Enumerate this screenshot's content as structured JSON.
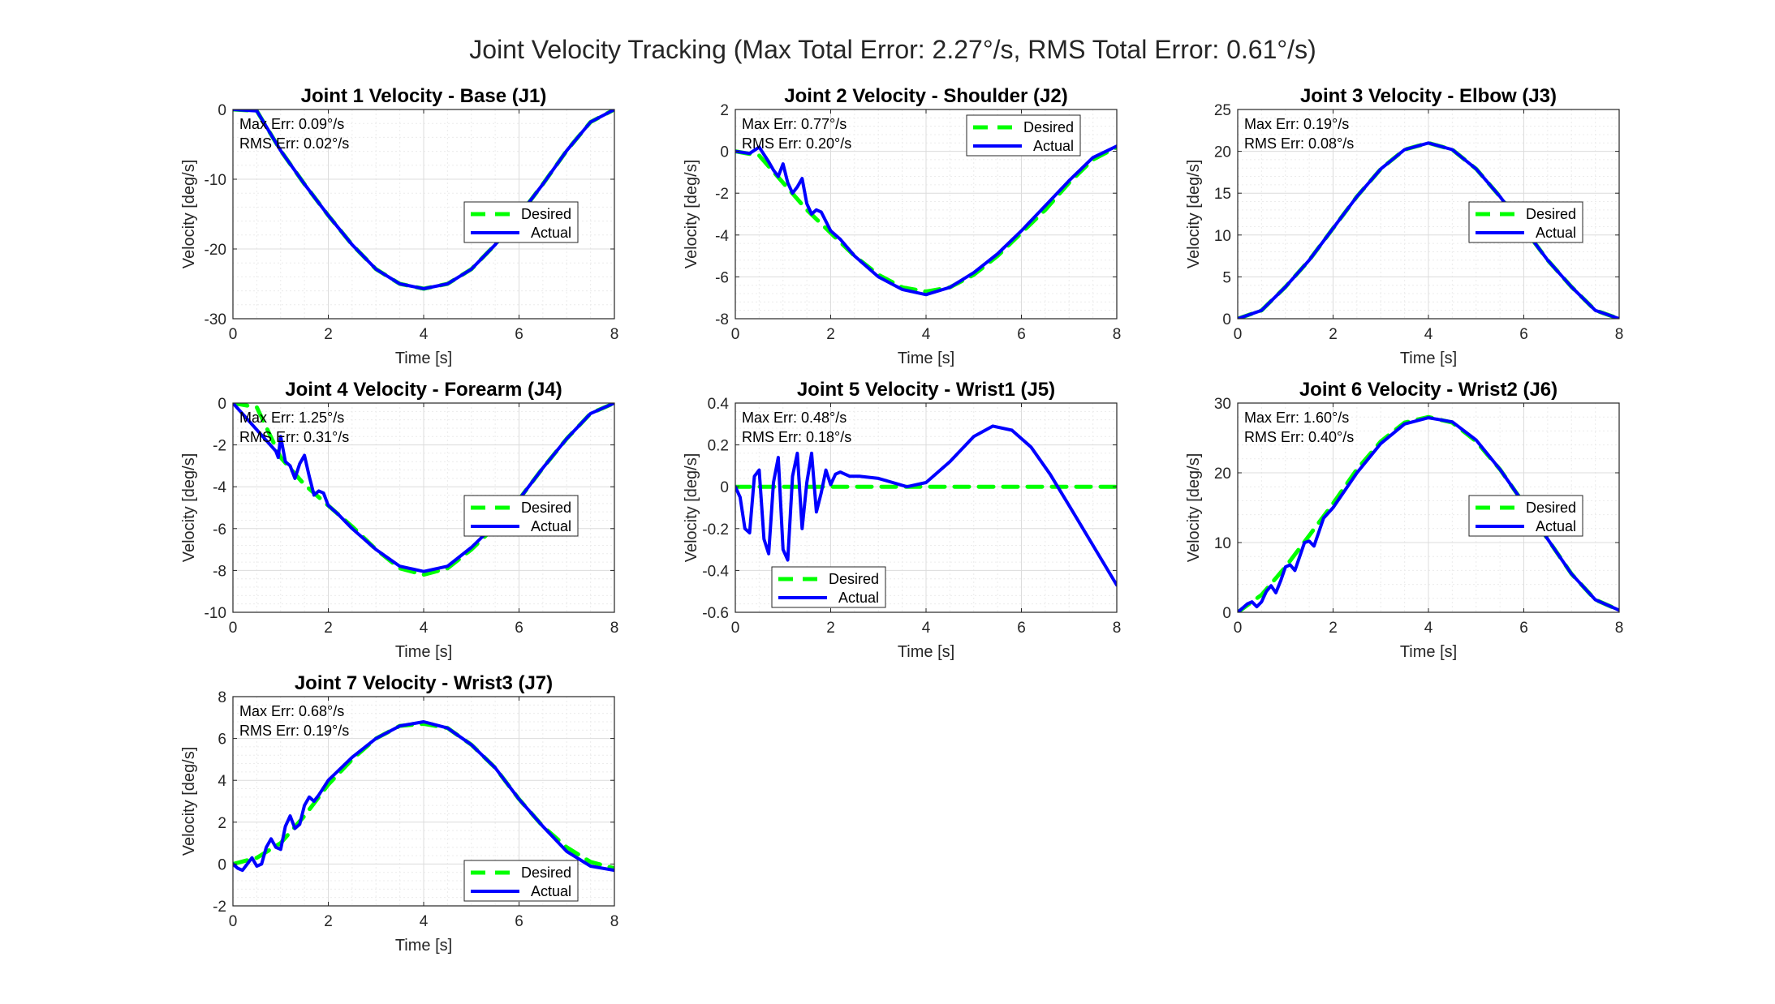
{
  "figure": {
    "suptitle": "Joint Velocity Tracking (Max Total Error: 2.27°/s, RMS Total Error: 0.61°/s)"
  },
  "colors": {
    "desired": "#00ff00",
    "actual": "#0000ff"
  },
  "chart_data": [
    {
      "type": "line",
      "title": "Joint 1 Velocity - Base (J1)",
      "xlabel": "Time [s]",
      "ylabel": "Velocity [deg/s]",
      "xlim": [
        0,
        8
      ],
      "ylim": [
        -30,
        0
      ],
      "xticks": [
        0,
        2,
        4,
        6,
        8
      ],
      "yticks": [
        -30,
        -20,
        -10,
        0
      ],
      "grid": true,
      "legend_placement": "center-right",
      "annotations": [
        "Max Err: 0.09°/s",
        "RMS Err: 0.02°/s"
      ],
      "series": [
        {
          "name": "Desired",
          "x": [
            0,
            0.5,
            1,
            1.5,
            2,
            2.5,
            3,
            3.5,
            4,
            4.5,
            5,
            5.5,
            6,
            6.5,
            7,
            7.5,
            8
          ],
          "y": [
            0,
            -0.2,
            -5.9,
            -10.7,
            -15.2,
            -19.4,
            -22.9,
            -25.0,
            -25.7,
            -25.0,
            -22.9,
            -19.4,
            -15.2,
            -10.7,
            -5.9,
            -1.8,
            0
          ]
        },
        {
          "name": "Actual",
          "x": [
            0,
            0.5,
            1,
            1.5,
            2,
            2.5,
            3,
            3.5,
            4,
            4.5,
            5,
            5.5,
            6,
            6.5,
            7,
            7.5,
            8
          ],
          "y": [
            0,
            -0.2,
            -5.9,
            -10.7,
            -15.2,
            -19.4,
            -22.9,
            -25.0,
            -25.7,
            -25.0,
            -22.9,
            -19.4,
            -15.2,
            -10.7,
            -5.9,
            -1.8,
            0
          ]
        }
      ]
    },
    {
      "type": "line",
      "title": "Joint 2 Velocity - Shoulder (J2)",
      "xlabel": "Time [s]",
      "ylabel": "Velocity [deg/s]",
      "xlim": [
        0,
        8
      ],
      "ylim": [
        -8,
        2
      ],
      "xticks": [
        0,
        2,
        4,
        6,
        8
      ],
      "yticks": [
        -8,
        -6,
        -4,
        -2,
        0,
        2
      ],
      "grid": true,
      "legend_placement": "top-right",
      "annotations": [
        "Max Err: 0.77°/s",
        "RMS Err: 0.20°/s"
      ],
      "series": [
        {
          "name": "Desired",
          "x": [
            0,
            0.5,
            1,
            1.5,
            2,
            2.5,
            3,
            3.5,
            4,
            4.5,
            5,
            5.5,
            6,
            6.5,
            7,
            7.5,
            8
          ],
          "y": [
            0,
            -0.2,
            -1.5,
            -2.8,
            -3.9,
            -5.0,
            -5.9,
            -6.5,
            -6.7,
            -6.5,
            -5.9,
            -5.0,
            -3.9,
            -2.8,
            -1.5,
            -0.4,
            0.2
          ]
        },
        {
          "name": "Actual",
          "x": [
            0,
            0.3,
            0.5,
            0.7,
            0.8,
            0.9,
            1.0,
            1.1,
            1.2,
            1.3,
            1.4,
            1.5,
            1.6,
            1.7,
            1.8,
            2.0,
            2.2,
            2.5,
            3,
            3.5,
            4,
            4.5,
            5,
            5.5,
            6,
            6.5,
            7,
            7.5,
            8
          ],
          "y": [
            0,
            -0.1,
            0.2,
            -0.5,
            -0.9,
            -1.2,
            -0.6,
            -1.5,
            -2.0,
            -1.7,
            -1.3,
            -2.5,
            -3.0,
            -2.8,
            -2.9,
            -3.8,
            -4.2,
            -5.0,
            -6.0,
            -6.6,
            -6.85,
            -6.5,
            -5.8,
            -4.9,
            -3.8,
            -2.6,
            -1.4,
            -0.3,
            0.25
          ]
        }
      ]
    },
    {
      "type": "line",
      "title": "Joint 3 Velocity - Elbow (J3)",
      "xlabel": "Time [s]",
      "ylabel": "Velocity [deg/s]",
      "xlim": [
        0,
        8
      ],
      "ylim": [
        0,
        25
      ],
      "xticks": [
        0,
        2,
        4,
        6,
        8
      ],
      "yticks": [
        0,
        5,
        10,
        15,
        20,
        25
      ],
      "grid": true,
      "legend_placement": "center-right",
      "annotations": [
        "Max Err: 0.19°/s",
        "RMS Err: 0.08°/s"
      ],
      "series": [
        {
          "name": "Desired",
          "x": [
            0,
            0.5,
            1,
            1.5,
            2,
            2.5,
            3,
            3.5,
            4,
            4.5,
            5,
            5.5,
            6,
            6.5,
            7,
            7.5,
            8
          ],
          "y": [
            0,
            1.0,
            3.8,
            7.0,
            10.8,
            14.6,
            17.9,
            20.2,
            21.0,
            20.2,
            17.9,
            14.6,
            10.8,
            7.0,
            3.8,
            1.0,
            0
          ]
        },
        {
          "name": "Actual",
          "x": [
            0,
            0.5,
            1,
            1.5,
            2,
            2.5,
            3,
            3.5,
            4,
            4.5,
            5,
            5.5,
            6,
            6.5,
            7,
            7.5,
            8
          ],
          "y": [
            0,
            1.0,
            3.8,
            7.0,
            10.8,
            14.6,
            17.9,
            20.2,
            21.0,
            20.2,
            17.9,
            14.6,
            10.8,
            7.0,
            3.8,
            1.0,
            0
          ]
        }
      ]
    },
    {
      "type": "line",
      "title": "Joint 4 Velocity - Forearm (J4)",
      "xlabel": "Time [s]",
      "ylabel": "Velocity [deg/s]",
      "xlim": [
        0,
        8
      ],
      "ylim": [
        -10,
        0
      ],
      "xticks": [
        0,
        2,
        4,
        6,
        8
      ],
      "yticks": [
        -10,
        -8,
        -6,
        -4,
        -2,
        0
      ],
      "grid": true,
      "legend_placement": "center-right",
      "annotations": [
        "Max Err: 1.25°/s",
        "RMS Err: 0.31°/s"
      ],
      "series": [
        {
          "name": "Desired",
          "x": [
            0,
            0.5,
            1,
            1.5,
            2,
            2.5,
            3,
            3.5,
            4,
            4.5,
            5,
            5.5,
            6,
            6.5,
            7,
            7.5,
            8
          ],
          "y": [
            0,
            -0.2,
            -2.6,
            -3.9,
            -4.9,
            -5.9,
            -7.0,
            -7.9,
            -8.2,
            -7.9,
            -7.0,
            -5.9,
            -4.6,
            -3.1,
            -1.7,
            -0.5,
            0
          ]
        },
        {
          "name": "Actual",
          "x": [
            0,
            0.9,
            0.95,
            1.0,
            1.1,
            1.2,
            1.3,
            1.4,
            1.5,
            1.6,
            1.7,
            1.8,
            1.9,
            2.0,
            2.2,
            2.5,
            3,
            3.5,
            4,
            4.5,
            5,
            5.5,
            6,
            6.5,
            7,
            7.5,
            8
          ],
          "y": [
            0,
            -2.3,
            -2.6,
            -1.6,
            -2.8,
            -3.0,
            -3.6,
            -2.9,
            -2.5,
            -3.5,
            -4.4,
            -4.2,
            -4.3,
            -4.9,
            -5.3,
            -6.0,
            -7.0,
            -7.8,
            -8.05,
            -7.8,
            -6.9,
            -5.8,
            -4.6,
            -3.1,
            -1.7,
            -0.5,
            0
          ]
        }
      ]
    },
    {
      "type": "line",
      "title": "Joint 5 Velocity - Wrist1 (J5)",
      "xlabel": "Time [s]",
      "ylabel": "Velocity [deg/s]",
      "xlim": [
        0,
        8
      ],
      "ylim": [
        -0.6,
        0.4
      ],
      "xticks": [
        0,
        2,
        4,
        6,
        8
      ],
      "yticks": [
        -0.6,
        -0.4,
        -0.2,
        0,
        0.2,
        0.4
      ],
      "grid": true,
      "legend_placement": "bottom-left",
      "annotations": [
        "Max Err: 0.48°/s",
        "RMS Err: 0.18°/s"
      ],
      "series": [
        {
          "name": "Desired",
          "x": [
            0,
            8
          ],
          "y": [
            0,
            0
          ]
        },
        {
          "name": "Actual",
          "x": [
            0,
            0.1,
            0.2,
            0.3,
            0.4,
            0.5,
            0.6,
            0.7,
            0.8,
            0.9,
            1.0,
            1.1,
            1.2,
            1.3,
            1.4,
            1.5,
            1.6,
            1.7,
            1.8,
            1.9,
            2.0,
            2.1,
            2.2,
            2.4,
            2.6,
            3.0,
            3.3,
            3.6,
            4.0,
            4.5,
            5.0,
            5.4,
            5.8,
            6.2,
            6.6,
            7.0,
            7.5,
            8.0
          ],
          "y": [
            0,
            -0.05,
            -0.2,
            -0.22,
            0.05,
            0.08,
            -0.25,
            -0.32,
            0.02,
            0.14,
            -0.3,
            -0.35,
            0.05,
            0.16,
            -0.2,
            0.02,
            0.16,
            -0.12,
            -0.03,
            0.08,
            0.01,
            0.06,
            0.07,
            0.05,
            0.05,
            0.04,
            0.02,
            0.0,
            0.02,
            0.12,
            0.24,
            0.29,
            0.27,
            0.19,
            0.06,
            -0.09,
            -0.28,
            -0.47
          ]
        }
      ]
    },
    {
      "type": "line",
      "title": "Joint 6 Velocity - Wrist2 (J6)",
      "xlabel": "Time [s]",
      "ylabel": "Velocity [deg/s]",
      "xlim": [
        0,
        8
      ],
      "ylim": [
        0,
        30
      ],
      "xticks": [
        0,
        2,
        4,
        6,
        8
      ],
      "yticks": [
        0,
        10,
        20,
        30
      ],
      "grid": true,
      "legend_placement": "center-right",
      "annotations": [
        "Max Err: 1.60°/s",
        "RMS Err: 0.40°/s"
      ],
      "series": [
        {
          "name": "Desired",
          "x": [
            0,
            0.5,
            1,
            1.5,
            2,
            2.5,
            3,
            3.5,
            4,
            4.5,
            5,
            5.5,
            6,
            6.5,
            7,
            7.5,
            8
          ],
          "y": [
            0,
            2.5,
            6.5,
            11,
            15.6,
            20.5,
            24.5,
            27.2,
            28.0,
            27.2,
            24.5,
            20.5,
            15.6,
            10.5,
            5.5,
            1.8,
            0.3
          ]
        },
        {
          "name": "Actual",
          "x": [
            0,
            0.2,
            0.3,
            0.4,
            0.5,
            0.6,
            0.7,
            0.8,
            0.9,
            1.0,
            1.1,
            1.2,
            1.3,
            1.4,
            1.5,
            1.6,
            1.7,
            1.8,
            2.0,
            2.5,
            3,
            3.5,
            4,
            4.5,
            5,
            5.5,
            6,
            6.5,
            7,
            7.5,
            8
          ],
          "y": [
            0,
            1.2,
            1.5,
            0.8,
            1.5,
            3.0,
            3.8,
            2.8,
            4.5,
            6.5,
            6.8,
            6.0,
            8.0,
            10.0,
            10.2,
            9.5,
            11.5,
            13.5,
            15.0,
            20.0,
            24.2,
            27.0,
            27.9,
            27.3,
            24.7,
            20.5,
            15.6,
            10.5,
            5.5,
            1.8,
            0.3
          ]
        }
      ]
    },
    {
      "type": "line",
      "title": "Joint 7 Velocity - Wrist3 (J7)",
      "xlabel": "Time [s]",
      "ylabel": "Velocity [deg/s]",
      "xlim": [
        0,
        8
      ],
      "ylim": [
        -2,
        8
      ],
      "xticks": [
        0,
        2,
        4,
        6,
        8
      ],
      "yticks": [
        -2,
        0,
        2,
        4,
        6,
        8
      ],
      "grid": true,
      "legend_placement": "bottom-right",
      "annotations": [
        "Max Err: 0.68°/s",
        "RMS Err: 0.19°/s"
      ],
      "series": [
        {
          "name": "Desired",
          "x": [
            0,
            0.5,
            1,
            1.5,
            2,
            2.5,
            3,
            3.5,
            4,
            4.5,
            5,
            5.5,
            6,
            6.5,
            7,
            7.5,
            8
          ],
          "y": [
            0,
            0.3,
            1.0,
            2.3,
            3.8,
            5.0,
            6.0,
            6.6,
            6.7,
            6.5,
            5.7,
            4.6,
            3.1,
            1.8,
            0.8,
            0.1,
            -0.2
          ]
        },
        {
          "name": "Actual",
          "x": [
            0,
            0.1,
            0.2,
            0.3,
            0.4,
            0.5,
            0.6,
            0.7,
            0.8,
            0.9,
            1.0,
            1.1,
            1.2,
            1.3,
            1.4,
            1.5,
            1.6,
            1.7,
            1.8,
            2.0,
            2.5,
            3,
            3.5,
            4,
            4.5,
            5,
            5.5,
            6,
            6.5,
            7,
            7.5,
            8
          ],
          "y": [
            0,
            -0.2,
            -0.3,
            0.0,
            0.3,
            -0.1,
            0.0,
            0.8,
            1.2,
            0.8,
            0.7,
            1.8,
            2.3,
            1.7,
            1.9,
            2.8,
            3.2,
            3.0,
            3.3,
            4.0,
            5.1,
            6.0,
            6.6,
            6.8,
            6.5,
            5.7,
            4.6,
            3.1,
            1.8,
            0.6,
            -0.1,
            -0.3
          ]
        }
      ]
    }
  ]
}
